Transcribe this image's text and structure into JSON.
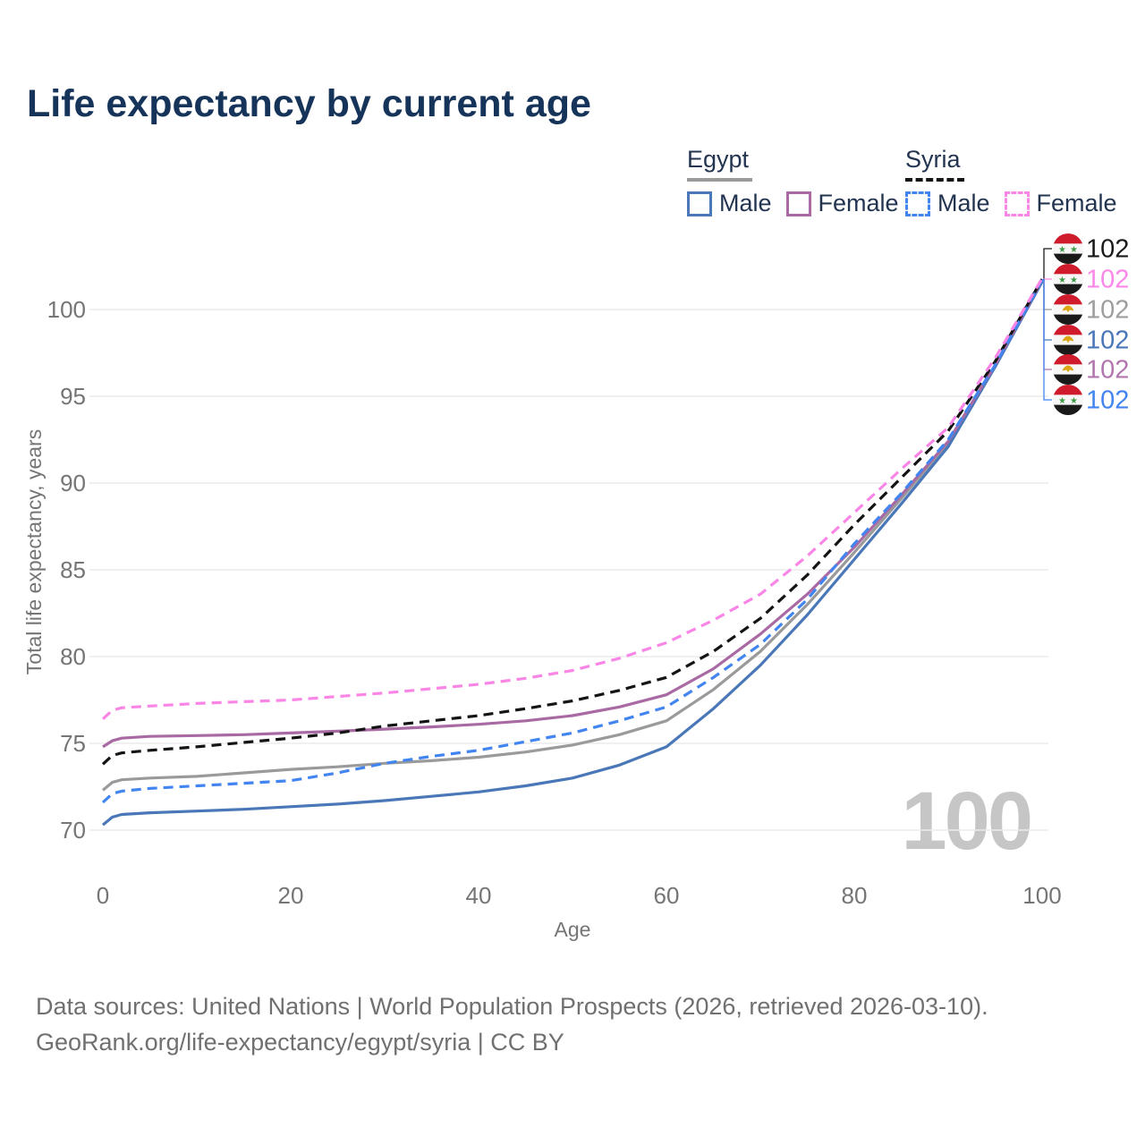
{
  "title": "Life expectancy by current age",
  "watermark": "100",
  "legend": {
    "groups": [
      {
        "label": "Egypt",
        "underline": {
          "style": "solid",
          "color": "#9a9a9a"
        },
        "items": [
          {
            "label": "Male",
            "color": "#4a77b8",
            "dashed": false
          },
          {
            "label": "Female",
            "color": "#a96aa4",
            "dashed": false
          }
        ]
      },
      {
        "label": "Syria",
        "underline": {
          "style": "dashed",
          "color": "#141414"
        },
        "items": [
          {
            "label": "Male",
            "color": "#4285f0",
            "dashed": true
          },
          {
            "label": "Female",
            "color": "#f986e6",
            "dashed": true
          }
        ]
      }
    ]
  },
  "chart_data": {
    "type": "line",
    "title": "Life expectancy by current age",
    "xlabel": "Age",
    "ylabel": "Total life expectancy, years",
    "xlim": [
      0,
      100
    ],
    "ylim": [
      70,
      102
    ],
    "xticks": [
      0,
      20,
      40,
      60,
      80,
      100
    ],
    "yticks": [
      70,
      75,
      80,
      85,
      90,
      95,
      100
    ],
    "grid": "horizontal",
    "legend_position": "top-right",
    "x": [
      0,
      1,
      2,
      5,
      10,
      15,
      20,
      25,
      30,
      35,
      40,
      45,
      50,
      55,
      60,
      65,
      70,
      75,
      80,
      85,
      90,
      95,
      100
    ],
    "series": [
      {
        "name": "Egypt Male",
        "country": "Egypt",
        "sex": "Male",
        "color": "#4a77b8",
        "dashed": false,
        "values": [
          70.3,
          70.75,
          70.9,
          71.0,
          71.1,
          71.2,
          71.35,
          71.5,
          71.7,
          71.95,
          72.2,
          72.55,
          73.0,
          73.75,
          74.8,
          77.0,
          79.5,
          82.4,
          85.6,
          88.8,
          92.1,
          96.7,
          101.6
        ]
      },
      {
        "name": "Egypt Female",
        "country": "Egypt",
        "sex": "Female",
        "color": "#a96aa4",
        "dashed": false,
        "values": [
          74.8,
          75.15,
          75.3,
          75.4,
          75.45,
          75.5,
          75.6,
          75.7,
          75.82,
          75.95,
          76.1,
          76.3,
          76.6,
          77.1,
          77.8,
          79.3,
          81.3,
          83.6,
          86.3,
          89.3,
          92.4,
          96.8,
          101.7
        ]
      },
      {
        "name": "Egypt Both sexes",
        "country": "Egypt",
        "sex": "Both",
        "color": "#9a9a9a",
        "dashed": false,
        "values": [
          72.3,
          72.75,
          72.9,
          73.0,
          73.1,
          73.3,
          73.5,
          73.65,
          73.85,
          74.0,
          74.2,
          74.5,
          74.9,
          75.5,
          76.3,
          78.1,
          80.3,
          83.0,
          86.0,
          89.1,
          92.3,
          96.7,
          101.65
        ]
      },
      {
        "name": "Syria Male",
        "country": "Syria",
        "sex": "Male",
        "color": "#4285f0",
        "dashed": true,
        "values": [
          71.6,
          72.1,
          72.25,
          72.4,
          72.55,
          72.7,
          72.85,
          73.3,
          73.85,
          74.25,
          74.6,
          75.1,
          75.6,
          76.3,
          77.1,
          78.8,
          80.7,
          83.3,
          86.5,
          89.4,
          92.5,
          96.8,
          101.7
        ]
      },
      {
        "name": "Syria Female",
        "country": "Syria",
        "sex": "Female",
        "color": "#f986e6",
        "dashed": true,
        "values": [
          76.4,
          76.9,
          77.05,
          77.15,
          77.3,
          77.4,
          77.5,
          77.7,
          77.9,
          78.15,
          78.4,
          78.75,
          79.2,
          79.9,
          80.8,
          82.1,
          83.6,
          85.8,
          88.3,
          90.8,
          93.2,
          97.2,
          101.8
        ]
      },
      {
        "name": "Syria Both sexes",
        "country": "Syria",
        "sex": "Both",
        "color": "#141414",
        "dashed": true,
        "values": [
          73.8,
          74.3,
          74.45,
          74.6,
          74.8,
          75.05,
          75.3,
          75.6,
          76.0,
          76.3,
          76.6,
          77.0,
          77.45,
          78.05,
          78.8,
          80.3,
          82.2,
          84.7,
          87.6,
          90.3,
          93.0,
          97.0,
          101.75
        ]
      }
    ],
    "end_labels": [
      {
        "series": "Syria Both sexes",
        "flag": "syria",
        "value": "102",
        "color": "#1a1a1a"
      },
      {
        "series": "Syria Female",
        "flag": "syria",
        "value": "102",
        "color": "#fb87e8"
      },
      {
        "series": "Egypt Both sexes",
        "flag": "egypt",
        "value": "102",
        "color": "#9e9e9e"
      },
      {
        "series": "Egypt Male",
        "flag": "egypt",
        "value": "102",
        "color": "#4a77b8"
      },
      {
        "series": "Egypt Female",
        "flag": "egypt",
        "value": "102",
        "color": "#b276ae"
      },
      {
        "series": "Syria Male",
        "flag": "syria",
        "value": "102",
        "color": "#4285f0"
      }
    ]
  },
  "footer": {
    "line1": "Data sources: United Nations | World Population Prospects (2026, retrieved 2026-03-10).",
    "line2": "GeoRank.org/life-expectancy/egypt/syria | CC BY"
  }
}
